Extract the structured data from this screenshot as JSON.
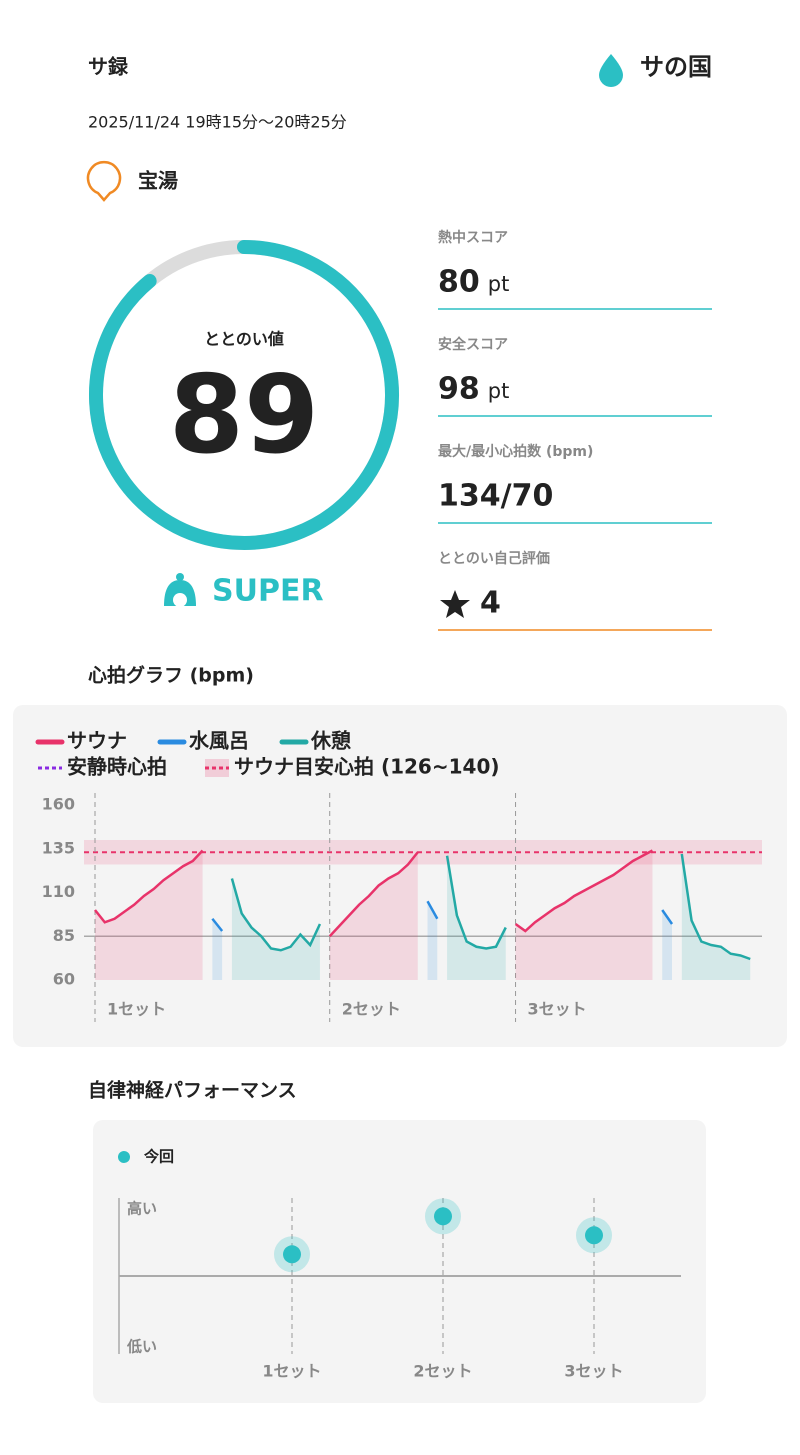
{
  "header": {
    "title": "サ録",
    "logo": "サの国"
  },
  "session": {
    "datetime": "2025/11/24 19時15分〜20時25分",
    "place": "宝湯"
  },
  "score": {
    "label": "ととのい値",
    "value": 89,
    "range": [
      0,
      100
    ],
    "rank": "SUPER"
  },
  "stats": [
    {
      "label": "熱中スコア",
      "value": 80,
      "unit": "pt"
    },
    {
      "label": "安全スコア",
      "value": 98,
      "unit": "pt"
    },
    {
      "label": "最大/最小心拍数 (bpm)",
      "value": "134/70"
    },
    {
      "label": "ととのい自己評価",
      "value": 4
    }
  ],
  "chart_data": [
    {
      "type": "line",
      "title": "心拍グラフ (bpm)",
      "ylim": [
        60,
        160
      ],
      "yticks": [
        60,
        85,
        110,
        135,
        160
      ],
      "series": [
        {
          "name": "サウナ",
          "color": "#e8336a",
          "values": [
            100,
            93,
            95,
            99,
            103,
            108,
            112,
            117,
            121,
            125,
            128,
            134,
            null,
            null,
            null,
            null,
            null,
            null,
            null,
            null,
            null,
            null,
            null,
            null,
            85,
            91,
            97,
            103,
            108,
            114,
            118,
            121,
            126,
            133,
            null,
            null,
            null,
            null,
            null,
            null,
            null,
            null,
            null,
            92,
            88,
            93,
            97,
            101,
            104,
            108,
            111,
            114,
            117,
            120,
            124,
            128,
            131,
            134,
            null,
            null,
            null,
            null,
            null,
            null,
            null,
            null,
            null,
            null
          ]
        },
        {
          "name": "水風呂",
          "color": "#2a8be0",
          "values": [
            null,
            null,
            null,
            null,
            null,
            null,
            null,
            null,
            null,
            null,
            null,
            null,
            95,
            88,
            null,
            null,
            null,
            null,
            null,
            null,
            null,
            null,
            null,
            null,
            null,
            null,
            null,
            null,
            null,
            null,
            null,
            null,
            null,
            null,
            105,
            95,
            null,
            null,
            null,
            null,
            null,
            null,
            null,
            null,
            null,
            null,
            null,
            null,
            null,
            null,
            null,
            null,
            null,
            null,
            null,
            null,
            null,
            null,
            100,
            92,
            null,
            null,
            null,
            null,
            null,
            null,
            null,
            null
          ]
        },
        {
          "name": "休憩",
          "color": "#23a9a5",
          "values": [
            null,
            null,
            null,
            null,
            null,
            null,
            null,
            null,
            null,
            null,
            null,
            null,
            null,
            null,
            118,
            98,
            90,
            85,
            78,
            77,
            79,
            86,
            80,
            92,
            null,
            null,
            null,
            null,
            null,
            null,
            null,
            null,
            null,
            null,
            null,
            null,
            131,
            97,
            82,
            79,
            78,
            79,
            90,
            null,
            null,
            null,
            null,
            null,
            null,
            null,
            null,
            null,
            null,
            null,
            null,
            null,
            null,
            null,
            null,
            null,
            132,
            94,
            82,
            80,
            79,
            75,
            74,
            72
          ]
        }
      ],
      "resting_hr": {
        "name": "安静時心拍",
        "value": 85,
        "color": "#8a2be2"
      },
      "target_zone": {
        "name": "サウナ目安心拍 (126~140)",
        "range": [
          126,
          140
        ],
        "color": "#e8336a"
      },
      "set_labels": [
        "1セット",
        "2セット",
        "3セット"
      ]
    },
    {
      "type": "scatter",
      "title": "自律神経パフォーマンス",
      "categories": [
        "1セット",
        "2セット",
        "3セット"
      ],
      "series": [
        {
          "name": "今回",
          "color": "#2bbfc4",
          "values": [
            0.32,
            0.88,
            0.6
          ]
        }
      ],
      "ylim": [
        -1.15,
        1.15
      ],
      "yticks": [
        {
          "value": -1,
          "label": "低い"
        },
        {
          "value": 1,
          "label": "高い"
        }
      ]
    }
  ]
}
